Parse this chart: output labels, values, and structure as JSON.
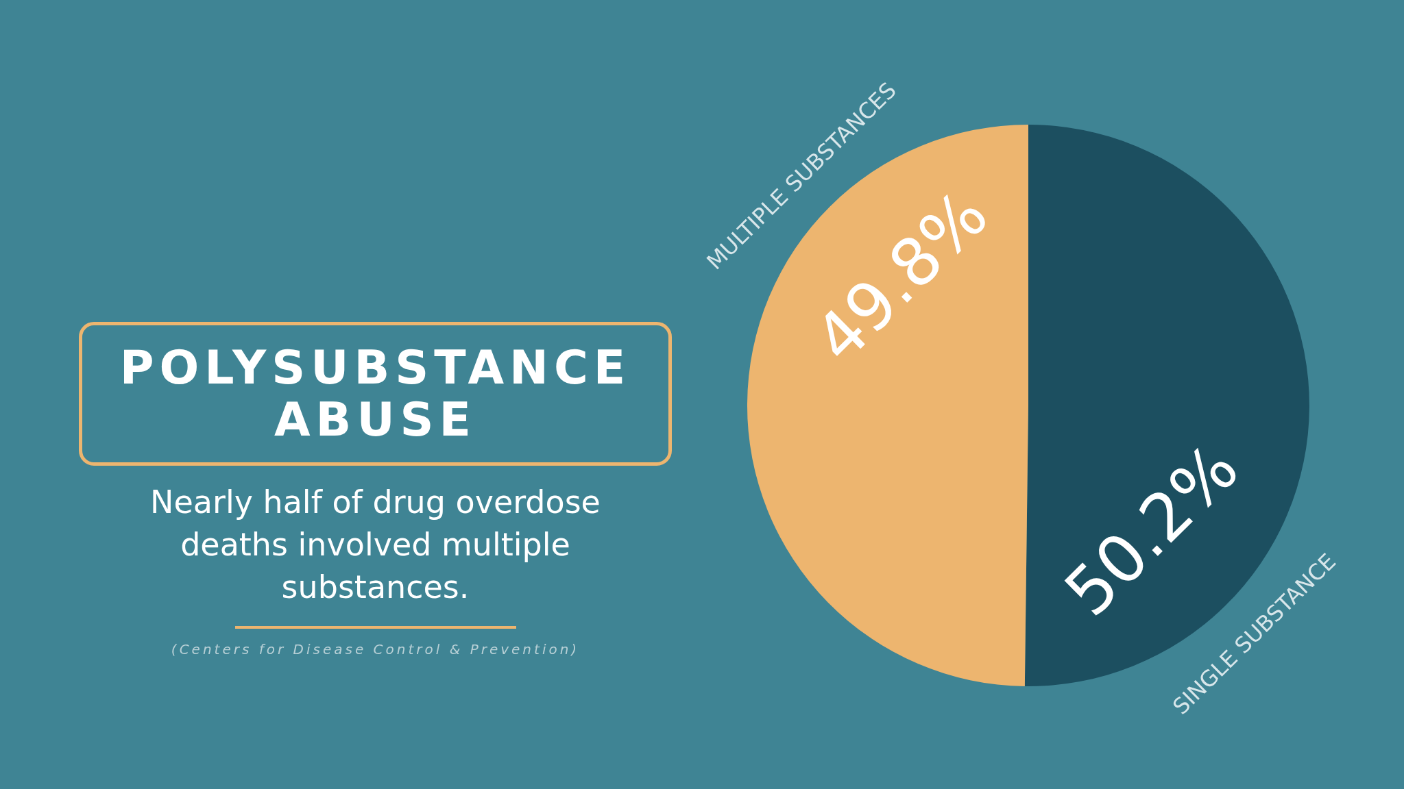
{
  "chart_data": {
    "type": "pie",
    "title": "POLYSUBSTANCE ABUSE",
    "subtitle": "Nearly half of drug overdose deaths involved multiple substances.",
    "annotations": [
      "(Centers for Disease Control & Prevention)"
    ],
    "categories": [
      "SINGLE SUBSTANCE",
      "MULTIPLE SUBSTANCES"
    ],
    "values": [
      50.2,
      49.8
    ],
    "colors": [
      "#1c4f60",
      "#edb56f"
    ],
    "value_labels": [
      "50.2%",
      "49.8%"
    ]
  }
}
